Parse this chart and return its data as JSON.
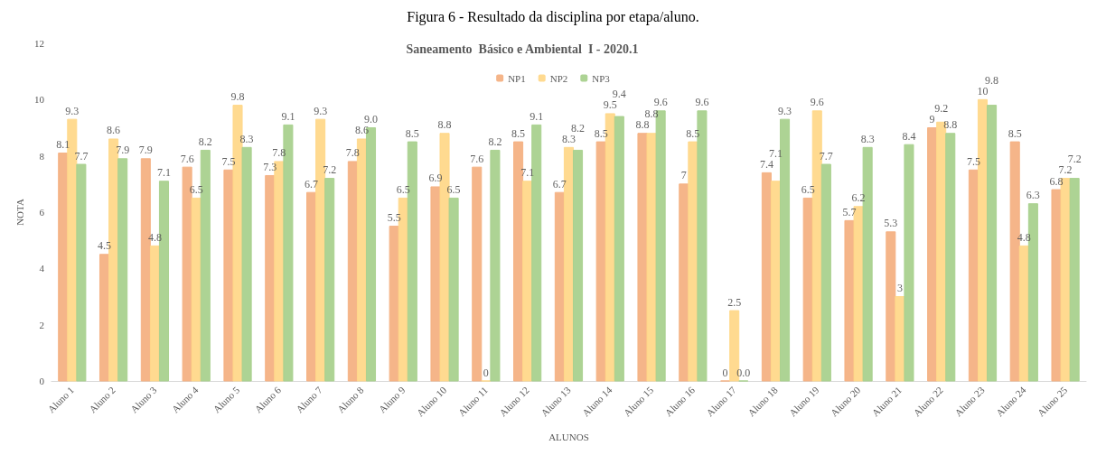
{
  "chart_data": {
    "type": "bar",
    "title": "Saneamento  Básico e Ambiental  I - 2020.1",
    "xlabel": "ALUNOS",
    "ylabel": "NOTA",
    "annotations": [
      "Figura 6 - Resultado da disciplina por etapa/aluno."
    ],
    "categories": [
      "Aluno 1",
      "Aluno 2",
      "Aluno 3",
      "Aluno 4",
      "Aluno 5",
      "Aluno 6",
      "Aluno 7",
      "Aluno 8",
      "Aluno 9",
      "Aluno 10",
      "Aluno 11",
      "Aluno 12",
      "Aluno 13",
      "Aluno 14",
      "Aluno 15",
      "Aluno 16",
      "Aluno 17",
      "Aluno 18",
      "Aluno 19",
      "Aluno 20",
      "Aluno 21",
      "Aluno 22",
      "Aluno 23",
      "Aluno 24",
      "Aluno 25"
    ],
    "series": [
      {
        "name": "NP1",
        "color": "#f4b183",
        "values": [
          8.1,
          4.5,
          7.9,
          7.6,
          7.5,
          7.3,
          6.7,
          7.8,
          5.5,
          6.9,
          7.6,
          8.5,
          6.7,
          8.5,
          8.8,
          7,
          0,
          7.4,
          6.5,
          5.7,
          5.3,
          9,
          7.5,
          8.5,
          6.8
        ],
        "value_labels": [
          "8.1",
          "4.5",
          "7.9",
          "7.6",
          "7.5",
          "7.3",
          "6.7",
          "7.8",
          "5.5",
          "6.9",
          "7.6",
          "8.5",
          "6.7",
          "8.5",
          "8.8",
          "7",
          "0",
          "7.4",
          "6.5",
          "5.7",
          "5.3",
          "9",
          "7.5",
          "8.5",
          "6.8"
        ]
      },
      {
        "name": "NP2",
        "color": "#ffd88a",
        "values": [
          9.3,
          8.6,
          4.8,
          6.5,
          9.8,
          7.8,
          9.3,
          8.6,
          6.5,
          8.8,
          0,
          7.1,
          8.3,
          9.5,
          8.8,
          8.5,
          2.5,
          7.1,
          9.6,
          6.2,
          3,
          9.2,
          10,
          4.8,
          7.2
        ],
        "value_labels": [
          "9.3",
          "8.6",
          "4.8",
          "6.5",
          "9.8",
          "7.8",
          "9.3",
          "8.6",
          "6.5",
          "8.8",
          "0",
          "7.1",
          "8.3",
          "9.5",
          "8.8",
          "8.5",
          "2.5",
          "7.1",
          "9.6",
          "6.2",
          "3",
          "9.2",
          "10",
          "4.8",
          "7.2"
        ]
      },
      {
        "name": "NP3",
        "color": "#a9d18e",
        "values": [
          7.7,
          7.9,
          7.1,
          8.2,
          8.3,
          9.1,
          7.2,
          9.0,
          8.5,
          6.5,
          8.2,
          9.1,
          8.2,
          9.4,
          9.6,
          9.6,
          0,
          9.3,
          7.7,
          8.3,
          8.4,
          8.8,
          9.8,
          6.3,
          7.2
        ],
        "value_labels": [
          "7.7",
          "7.9",
          "7.1",
          "8.2",
          "8.3",
          "9.1",
          "7.2",
          "9.0",
          "8.5",
          "6.5",
          "8.2",
          "9.1",
          "8.2",
          "9.4",
          "9.6",
          "9.6",
          "0.0",
          "9.3",
          "7.7",
          "8.3",
          "8.4",
          "8.8",
          "9.8",
          "6.3",
          "7.2"
        ]
      }
    ],
    "ylim": [
      0,
      12
    ],
    "yticks": [
      0,
      2,
      4,
      6,
      8,
      10,
      12
    ],
    "grid": false,
    "legend": "top"
  }
}
